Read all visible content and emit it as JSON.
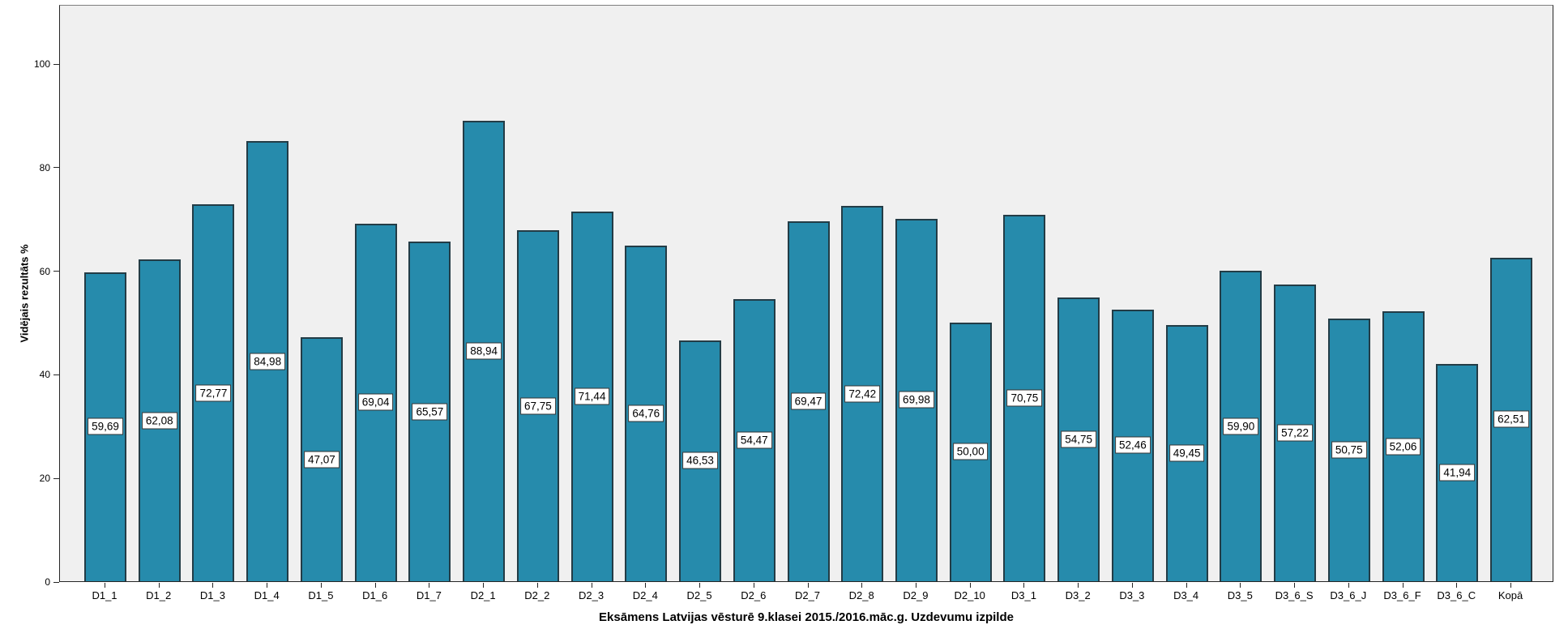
{
  "chart_data": {
    "type": "bar",
    "title": "Eksāmens Latvijas vēsturē 9.klasei 2015./2016.māc.g. Uzdevumu izpilde",
    "xlabel": "Eksāmens Latvijas vēsturē 9.klasei 2015./2016.māc.g. Uzdevumu izpilde",
    "ylabel": "Vidējais rezultāts %",
    "categories": [
      "D1_1",
      "D1_2",
      "D1_3",
      "D1_4",
      "D1_5",
      "D1_6",
      "D1_7",
      "D2_1",
      "D2_2",
      "D2_3",
      "D2_4",
      "D2_5",
      "D2_6",
      "D2_7",
      "D2_8",
      "D2_9",
      "D2_10",
      "D3_1",
      "D3_2",
      "D3_3",
      "D3_4",
      "D3_5",
      "D3_6_S",
      "D3_6_J",
      "D3_6_F",
      "D3_6_C",
      "Kopā"
    ],
    "values": [
      59.69,
      62.08,
      72.77,
      84.98,
      47.07,
      69.04,
      65.57,
      88.94,
      67.75,
      71.44,
      64.76,
      46.53,
      54.47,
      69.47,
      72.42,
      69.98,
      50.0,
      70.75,
      54.75,
      52.46,
      49.45,
      59.9,
      57.22,
      50.75,
      52.06,
      41.94,
      62.51
    ],
    "value_labels": [
      "59,69",
      "62,08",
      "72,77",
      "84,98",
      "47,07",
      "69,04",
      "65,57",
      "88,94",
      "67,75",
      "71,44",
      "64,76",
      "46,53",
      "54,47",
      "69,47",
      "72,42",
      "69,98",
      "50,00",
      "70,75",
      "54,75",
      "52,46",
      "49,45",
      "59,90",
      "57,22",
      "50,75",
      "52,06",
      "41,94",
      "62,51"
    ],
    "yticks": [
      0,
      20,
      40,
      60,
      80,
      100
    ],
    "ylim": [
      0,
      111.4
    ],
    "grid": false,
    "legend": "none",
    "colors": {
      "bar_fill": "#268BAC",
      "bar_border": "#233C46",
      "panel_bg": "#F0F0F0",
      "label_box_bg": "#FFFFFF",
      "label_box_border": "#333333",
      "axis": "#262626",
      "text": "#000000"
    }
  }
}
